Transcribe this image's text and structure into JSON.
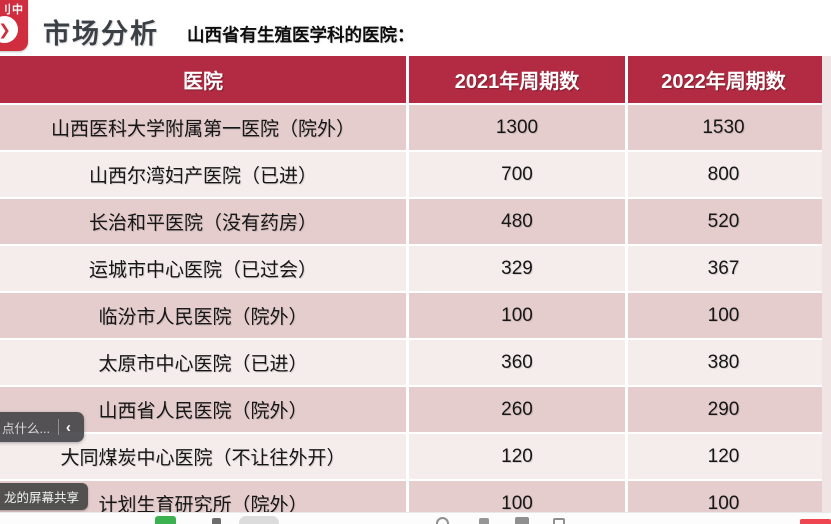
{
  "colors": {
    "header_red": "#b22b42",
    "badge_red": "#d02e3e",
    "row_dark": "#e5cdcd",
    "row_light": "#f5ecec"
  },
  "overlay": {
    "record_badge": {
      "label": "刂中",
      "arrow": "❯"
    },
    "chat_pill": {
      "placeholder": "点什么...",
      "chevron": "‹"
    },
    "share_badge": {
      "label": "龙的屏幕共享"
    }
  },
  "slide": {
    "title": "市场分析",
    "subtitle": "山西省有生殖医学科的医院：",
    "table": {
      "headers": [
        "医院",
        "2021年周期数",
        "2022年周期数"
      ],
      "rows": [
        [
          "山西医科大学附属第一医院（院外）",
          "1300",
          "1530"
        ],
        [
          "山西尔湾妇产医院（已进）",
          "700",
          "800"
        ],
        [
          "长治和平医院（没有药房）",
          "480",
          "520"
        ],
        [
          "运城市中心医院（已过会）",
          "329",
          "367"
        ],
        [
          "临汾市人民医院（院外）",
          "100",
          "100"
        ],
        [
          "太原市中心医院（已进）",
          "360",
          "380"
        ],
        [
          "山西省人民医院（院外）",
          "260",
          "290"
        ],
        [
          "大同煤炭中心医院（不让往外开）",
          "120",
          "120"
        ],
        [
          "计划生育研究所（院外）",
          "100",
          "100"
        ]
      ]
    }
  }
}
